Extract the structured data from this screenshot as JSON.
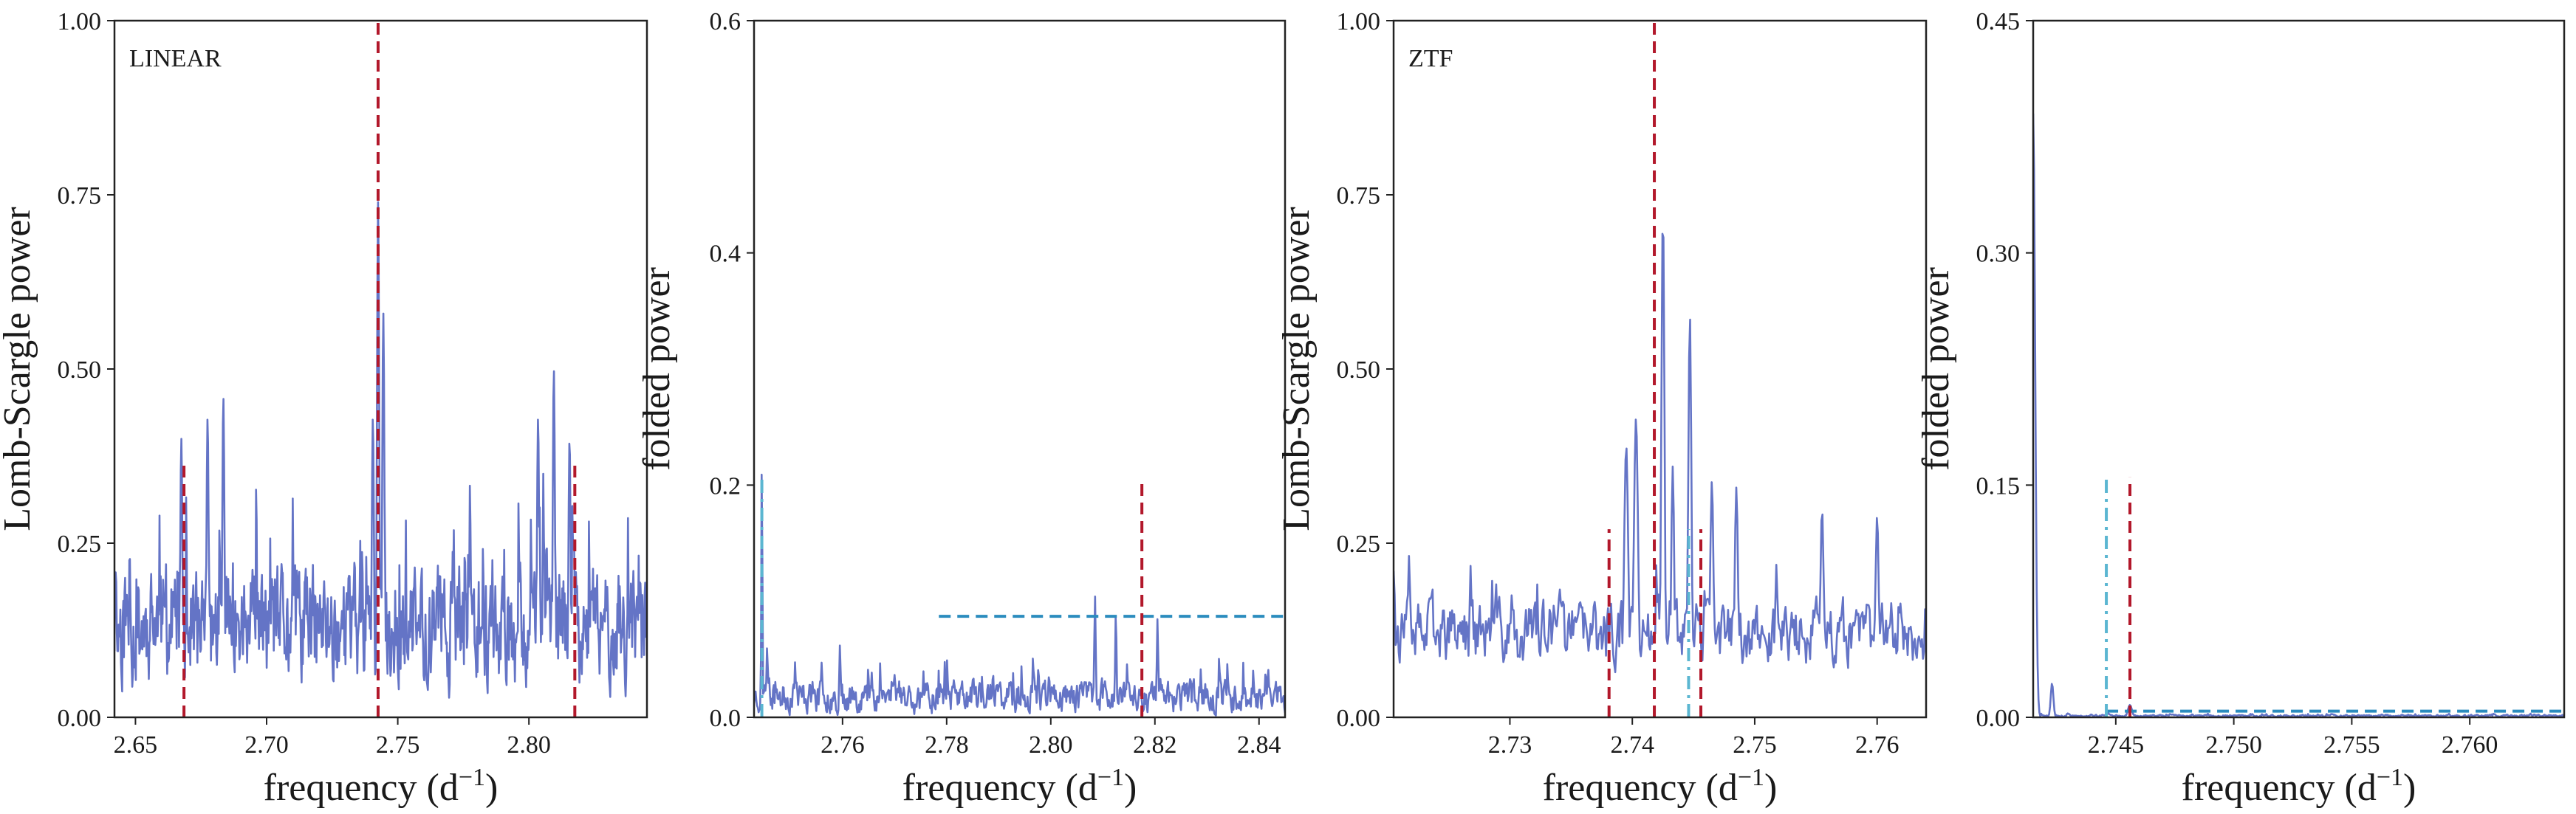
{
  "colors": {
    "periodogram": "#6474c6",
    "peak_marker": "#b2182b",
    "threshold": "#2b8cbe",
    "alias_marker": "#5bb6d1",
    "axes": "#222222"
  },
  "chart_data": [
    {
      "type": "line",
      "annotation": "LINEAR",
      "xlabel": "frequency (d",
      "xlabel_sup": "−1",
      "xlabel_end": ")",
      "ylabel": "Lomb-Scargle power",
      "xlim": [
        2.642,
        2.845
      ],
      "ylim": [
        0.0,
        1.0
      ],
      "xticks": [
        2.65,
        2.7,
        2.75,
        2.8
      ],
      "xtick_labels": [
        "2.65",
        "2.70",
        "2.75",
        "2.80"
      ],
      "yticks": [
        0.0,
        0.25,
        0.5,
        0.75,
        1.0
      ],
      "ytick_labels": [
        "0.00",
        "0.25",
        "0.50",
        "0.75",
        "1.00"
      ],
      "series": [
        {
          "x_range": [
            2.642,
            2.845
          ],
          "baseline": 0.13,
          "noise": 0.27,
          "samples": 900,
          "seed": 11,
          "peaks": [
            {
              "x": 2.7425,
              "y": 0.74,
              "w": 0.0006
            },
            {
              "x": 2.7445,
              "y": 0.58,
              "w": 0.0006
            },
            {
              "x": 2.7405,
              "y": 0.43,
              "w": 0.0006
            },
            {
              "x": 2.6675,
              "y": 0.4,
              "w": 0.0006
            },
            {
              "x": 2.6775,
              "y": 0.43,
              "w": 0.0006
            },
            {
              "x": 2.6835,
              "y": 0.46,
              "w": 0.0006
            },
            {
              "x": 2.8095,
              "y": 0.5,
              "w": 0.0006
            },
            {
              "x": 2.8035,
              "y": 0.43,
              "w": 0.0006
            },
            {
              "x": 2.8155,
              "y": 0.4,
              "w": 0.0006
            }
          ]
        }
      ],
      "vlines": [
        {
          "x": 2.7425,
          "y0": 0.0,
          "y1": 1.0,
          "style": "dashed",
          "color": "peak_marker"
        },
        {
          "x": 2.6685,
          "y0": 0.0,
          "y1": 0.37,
          "style": "dashed",
          "color": "peak_marker"
        },
        {
          "x": 2.8175,
          "y0": 0.0,
          "y1": 0.37,
          "style": "dashed",
          "color": "peak_marker"
        }
      ],
      "hlines": []
    },
    {
      "type": "line",
      "annotation": "",
      "xlabel": "frequency (d",
      "xlabel_sup": "−1",
      "xlabel_end": ")",
      "ylabel": "folded power",
      "xlim": [
        2.743,
        2.845
      ],
      "ylim": [
        0.0,
        0.6
      ],
      "xticks": [
        2.76,
        2.78,
        2.8,
        2.82,
        2.84
      ],
      "xtick_labels": [
        "2.76",
        "2.78",
        "2.80",
        "2.82",
        "2.84"
      ],
      "yticks": [
        0.0,
        0.2,
        0.4,
        0.6
      ],
      "ytick_labels": [
        "0.0",
        "0.2",
        "0.4",
        "0.6"
      ],
      "series": [
        {
          "x_range": [
            2.743,
            2.845
          ],
          "baseline": 0.018,
          "noise": 0.045,
          "samples": 700,
          "seed": 23,
          "peaks": [
            {
              "x": 2.7445,
              "y": 0.225,
              "w": 0.00015
            },
            {
              "x": 2.7455,
              "y": 0.06,
              "w": 0.0002
            },
            {
              "x": 2.7595,
              "y": 0.062,
              "w": 0.0002
            },
            {
              "x": 2.8085,
              "y": 0.105,
              "w": 0.0002
            },
            {
              "x": 2.8125,
              "y": 0.09,
              "w": 0.0002
            },
            {
              "x": 2.8205,
              "y": 0.085,
              "w": 0.0002
            }
          ]
        }
      ],
      "vlines": [
        {
          "x": 2.8175,
          "y0": 0.0,
          "y1": 0.205,
          "style": "dashed",
          "color": "peak_marker"
        },
        {
          "x": 2.7445,
          "y0": 0.0,
          "y1": 0.205,
          "style": "dashdot",
          "color": "alias_marker"
        }
      ],
      "hlines": [
        {
          "y": 0.087,
          "x0": 2.7785,
          "x1": 2.845,
          "style": "dashed",
          "color": "threshold"
        }
      ]
    },
    {
      "type": "line",
      "annotation": "ZTF",
      "xlabel": "frequency (d",
      "xlabel_sup": "−1",
      "xlabel_end": ")",
      "ylabel": "Lomb-Scargle power",
      "xlim": [
        2.7205,
        2.764
      ],
      "ylim": [
        0.0,
        1.0
      ],
      "xticks": [
        2.73,
        2.74,
        2.75,
        2.76
      ],
      "xtick_labels": [
        "2.73",
        "2.74",
        "2.75",
        "2.76"
      ],
      "yticks": [
        0.0,
        0.25,
        0.5,
        0.75,
        1.0
      ],
      "ytick_labels": [
        "0.00",
        "0.25",
        "0.50",
        "0.75",
        "1.00"
      ],
      "series": [
        {
          "x_range": [
            2.7205,
            2.764
          ],
          "baseline": 0.12,
          "noise": 0.15,
          "samples": 520,
          "seed": 37,
          "peaks": [
            {
              "x": 2.7205,
              "y": 0.21,
              "w": 0.0002
            },
            {
              "x": 2.7395,
              "y": 0.39,
              "w": 0.00025
            },
            {
              "x": 2.7403,
              "y": 0.43,
              "w": 0.00025
            },
            {
              "x": 2.7425,
              "y": 0.73,
              "w": 0.00018
            },
            {
              "x": 2.7433,
              "y": 0.36,
              "w": 0.00018
            },
            {
              "x": 2.7447,
              "y": 0.58,
              "w": 0.00018
            },
            {
              "x": 2.7465,
              "y": 0.34,
              "w": 0.0002
            },
            {
              "x": 2.7485,
              "y": 0.33,
              "w": 0.0002
            },
            {
              "x": 2.7555,
              "y": 0.3,
              "w": 0.0002
            },
            {
              "x": 2.76,
              "y": 0.29,
              "w": 0.0002
            }
          ]
        }
      ],
      "vlines": [
        {
          "x": 2.7418,
          "y0": 0.0,
          "y1": 1.0,
          "style": "dashed",
          "color": "peak_marker"
        },
        {
          "x": 2.7381,
          "y0": 0.0,
          "y1": 0.27,
          "style": "dashed",
          "color": "peak_marker"
        },
        {
          "x": 2.7456,
          "y0": 0.0,
          "y1": 0.27,
          "style": "dashed",
          "color": "peak_marker"
        },
        {
          "x": 2.7446,
          "y0": 0.0,
          "y1": 0.27,
          "style": "dashdot",
          "color": "alias_marker"
        }
      ],
      "hlines": []
    },
    {
      "type": "line",
      "annotation": "",
      "xlabel": "frequency (d",
      "xlabel_sup": "−1",
      "xlabel_end": ")",
      "ylabel": "folded power",
      "xlim": [
        2.7415,
        2.764
      ],
      "ylim": [
        0.0,
        0.45
      ],
      "xticks": [
        2.745,
        2.75,
        2.755,
        2.76
      ],
      "xtick_labels": [
        "2.745",
        "2.750",
        "2.755",
        "2.760"
      ],
      "yticks": [
        0.0,
        0.15,
        0.3,
        0.45
      ],
      "ytick_labels": [
        "0.00",
        "0.15",
        "0.30",
        "0.45"
      ],
      "series": [
        {
          "x_range": [
            2.7415,
            2.764
          ],
          "baseline": 0.001,
          "noise": 0.002,
          "samples": 600,
          "seed": 5,
          "peaks": [
            {
              "x": 2.7415,
              "y": 0.39,
              "w": 0.00012
            },
            {
              "x": 2.7423,
              "y": 0.022,
              "w": 8e-05
            },
            {
              "x": 2.7456,
              "y": 0.008,
              "w": 0.00012
            }
          ]
        }
      ],
      "vlines": [
        {
          "x": 2.7456,
          "y0": 0.0,
          "y1": 0.155,
          "style": "dashed",
          "color": "peak_marker"
        },
        {
          "x": 2.7446,
          "y0": 0.0,
          "y1": 0.155,
          "style": "dashdot",
          "color": "alias_marker"
        }
      ],
      "hlines": [
        {
          "y": 0.004,
          "x0": 2.7446,
          "x1": 2.764,
          "style": "dashed",
          "color": "threshold"
        }
      ]
    }
  ]
}
